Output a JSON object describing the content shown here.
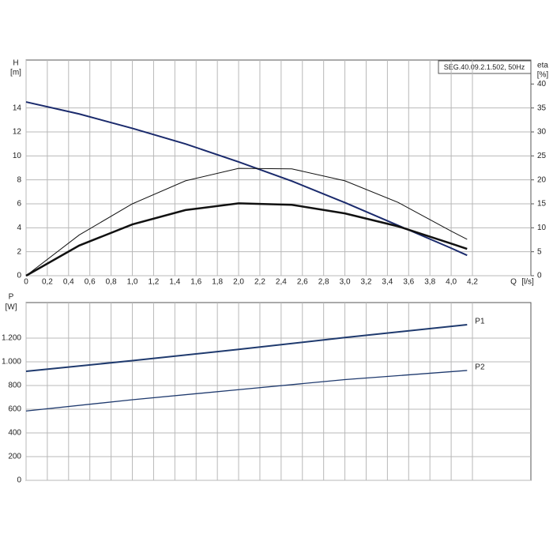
{
  "chart_data": [
    {
      "type": "line",
      "title": "SEG.40.09.2.1.502, 50Hz",
      "ylabel": "H",
      "yunit": "[m]",
      "y2label": "eta",
      "y2unit": "[%]",
      "xlabel": "Q",
      "xunit": "[l/s]",
      "xlim": [
        0,
        4.75
      ],
      "xticks": [
        0,
        {
          "value": 0.2,
          "label": "0,2"
        },
        {
          "value": 0.4,
          "label": "0,4"
        },
        {
          "value": 0.6,
          "label": "0,6"
        },
        {
          "value": 0.8,
          "label": "0,8"
        },
        {
          "value": 1.0,
          "label": "1,0"
        },
        {
          "value": 1.2,
          "label": "1,2"
        },
        {
          "value": 1.4,
          "label": "1,4"
        },
        {
          "value": 1.6,
          "label": "1,6"
        },
        {
          "value": 1.8,
          "label": "1,8"
        },
        {
          "value": 2.0,
          "label": "2,0"
        },
        {
          "value": 2.2,
          "label": "2,2"
        },
        {
          "value": 2.4,
          "label": "2,4"
        },
        {
          "value": 2.6,
          "label": "2,6"
        },
        {
          "value": 2.8,
          "label": "2,8"
        },
        {
          "value": 3.0,
          "label": "3,0"
        },
        {
          "value": 3.2,
          "label": "3,2"
        },
        {
          "value": 3.4,
          "label": "3,4"
        },
        {
          "value": 3.6,
          "label": "3,6"
        },
        {
          "value": 3.8,
          "label": "3,8"
        },
        {
          "value": 4.0,
          "label": "4,0"
        },
        {
          "value": 4.2,
          "label": "4,2"
        }
      ],
      "ylim": [
        0,
        18
      ],
      "yticks": [
        0,
        2,
        4,
        6,
        8,
        10,
        12,
        14
      ],
      "y2lim": [
        0,
        45
      ],
      "y2ticks": [
        0,
        5,
        10,
        15,
        20,
        25,
        30,
        35,
        40
      ],
      "x": [
        0,
        0.5,
        1,
        1.5,
        2,
        2.5,
        3,
        3.5,
        4,
        4.15
      ],
      "series": [
        {
          "color": "#1a2a6c",
          "width": 2,
          "values": [
            14.5,
            13.5,
            12.3,
            11.0,
            9.5,
            7.9,
            6.1,
            4.2,
            2.3,
            1.7
          ]
        },
        {
          "color": "#111111",
          "width": 1,
          "axis": "y2",
          "values": [
            0,
            8.5,
            15,
            19.8,
            22.4,
            22.3,
            19.8,
            15.3,
            9.3,
            7.6
          ]
        },
        {
          "color": "#111111",
          "width": 2.5,
          "axis": "y2",
          "values": [
            0,
            6.3,
            10.7,
            13.7,
            15.1,
            14.8,
            13.0,
            10.3,
            6.7,
            5.6
          ]
        }
      ],
      "grid": true
    },
    {
      "type": "line",
      "ylabel": "P",
      "yunit": "[W]",
      "xlim": [
        0,
        4.75
      ],
      "ylim": [
        0,
        1500
      ],
      "yticks": [
        0,
        200,
        400,
        600,
        800,
        {
          "value": 1000,
          "label": "1.000"
        },
        {
          "value": 1200,
          "label": "1.200"
        }
      ],
      "x": [
        0,
        1,
        2,
        3,
        4.15
      ],
      "series": [
        {
          "name": "P1",
          "color": "#1f3a6e",
          "width": 2,
          "values": [
            920,
            1010,
            1105,
            1205,
            1313
          ]
        },
        {
          "name": "P2",
          "color": "#1f3a6e",
          "width": 1.3,
          "values": [
            585,
            680,
            765,
            850,
            927
          ]
        }
      ],
      "grid": true
    }
  ]
}
